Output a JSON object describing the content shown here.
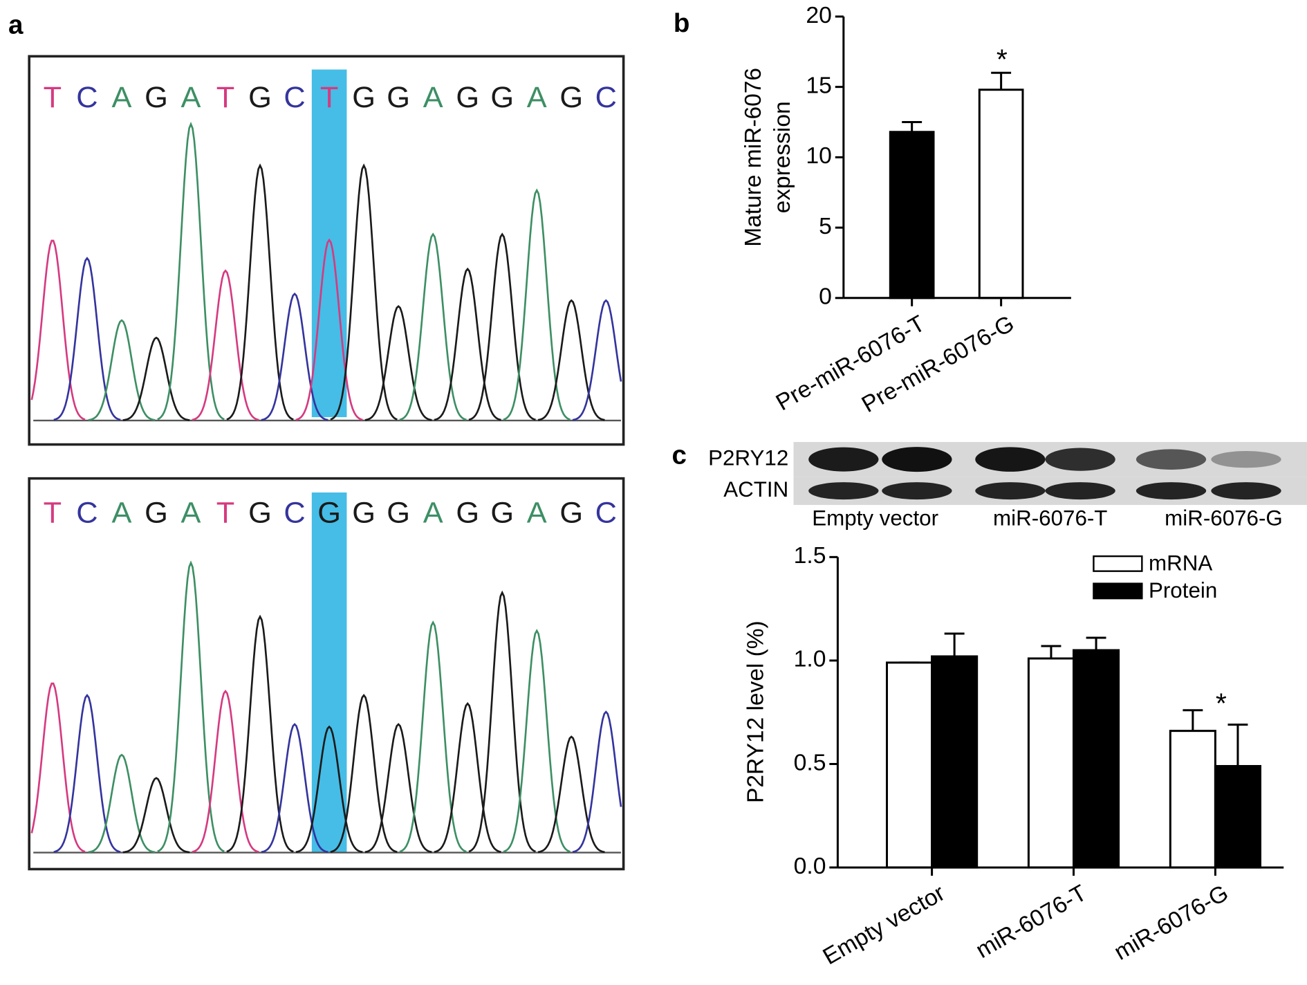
{
  "panel_labels": [
    "a",
    "b",
    "c"
  ],
  "chromatograms": [
    {
      "bases": [
        "T",
        "C",
        "A",
        "G",
        "A",
        "T",
        "G",
        "C",
        "T",
        "G",
        "G",
        "A",
        "G",
        "G",
        "A",
        "G",
        "C"
      ],
      "highlight_index": 8
    },
    {
      "bases": [
        "T",
        "C",
        "A",
        "G",
        "A",
        "T",
        "G",
        "C",
        "G",
        "G",
        "G",
        "A",
        "G",
        "G",
        "A",
        "G",
        "C"
      ],
      "highlight_index": 8
    }
  ],
  "base_colors": {
    "T": "#d63a80",
    "C": "#34349e",
    "A": "#3d8f64",
    "G": "#1a1a1a"
  },
  "highlight_color": "#45bde6",
  "blot": {
    "rows": [
      "P2RY12",
      "ACTIN"
    ],
    "lanes": [
      "Empty vector",
      "miR-6076-T",
      "miR-6076-G"
    ]
  },
  "chart_data": [
    {
      "type": "bar",
      "ylabel": [
        "Mature miR-6076",
        "expression"
      ],
      "categories": [
        "Pre-miR-6076-T",
        "Pre-miR-6076-G"
      ],
      "values": [
        11.8,
        14.8
      ],
      "errors": [
        0.7,
        1.2
      ],
      "colors": [
        "#000000",
        "#ffffff"
      ],
      "ylim": [
        0,
        20
      ],
      "yticks": [
        0,
        5,
        10,
        15,
        20
      ],
      "annotations": [
        "*"
      ]
    },
    {
      "type": "bar",
      "ylabel": [
        "P2RY12 level (%)"
      ],
      "categories": [
        "Empty vector",
        "miR-6076-T",
        "miR-6076-G"
      ],
      "series": [
        {
          "name": "mRNA",
          "color": "#ffffff",
          "values": [
            0.99,
            1.01,
            0.66
          ],
          "errors": [
            0,
            0.06,
            0.1
          ]
        },
        {
          "name": "Protein",
          "color": "#000000",
          "values": [
            1.02,
            1.05,
            0.49
          ],
          "errors": [
            0.11,
            0.06,
            0.2
          ]
        }
      ],
      "ylim": [
        0,
        1.5
      ],
      "yticks": [
        {
          "value": 0,
          "label": "0.0"
        },
        0.5,
        {
          "value": 1,
          "label": "1.0"
        },
        1.5
      ],
      "legend": "top-right",
      "annotations": [
        "*"
      ]
    }
  ]
}
